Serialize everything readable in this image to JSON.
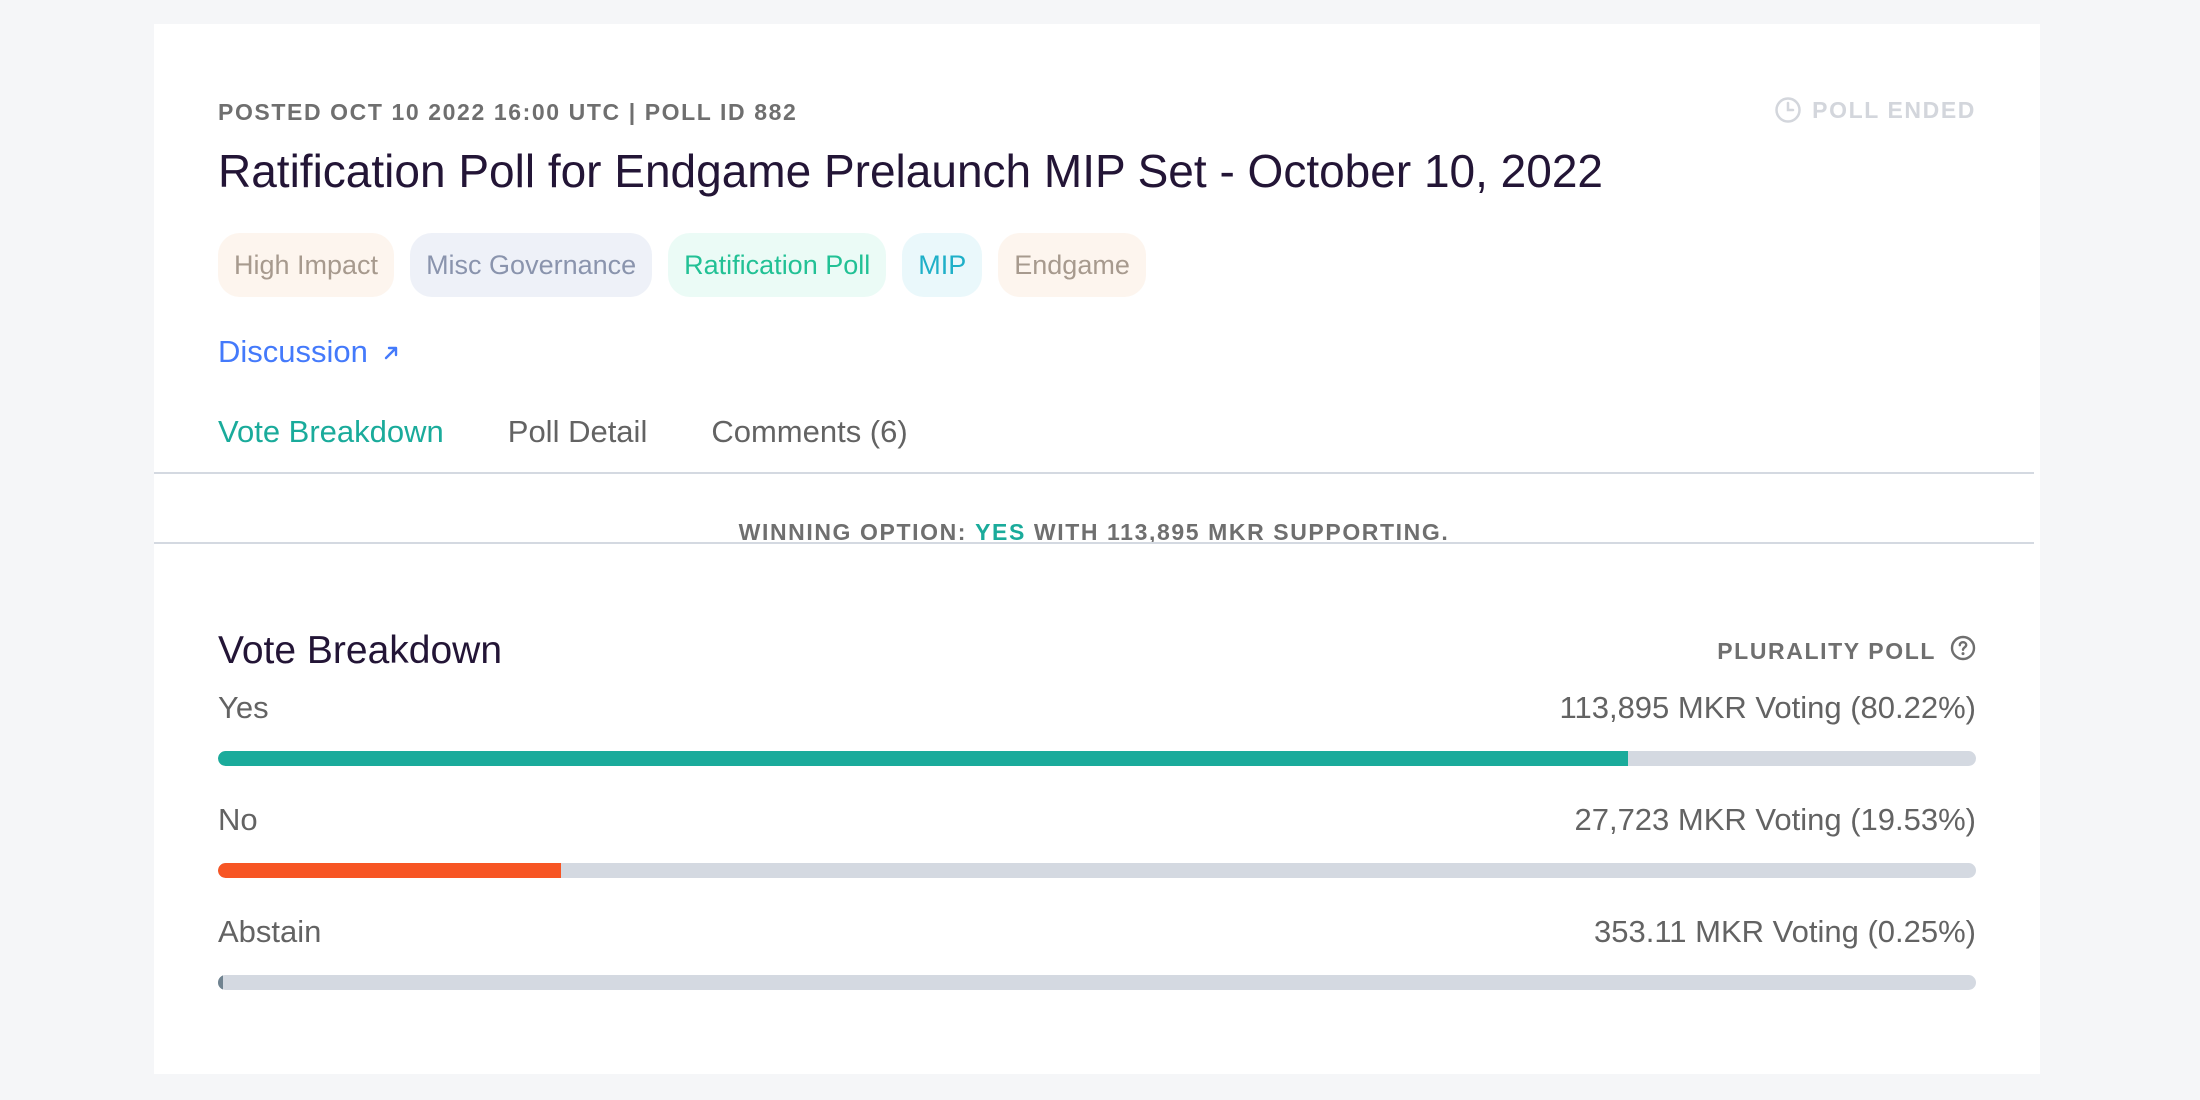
{
  "poll": {
    "meta": "POSTED OCT 10 2022 16:00 UTC | POLL ID 882",
    "status": "POLL ENDED",
    "title": "Ratification Poll for Endgame Prelaunch MIP Set - October 10, 2022",
    "tags": [
      {
        "label": "High Impact",
        "bg": "#fdf5ee",
        "color": "#a79a8e"
      },
      {
        "label": "Misc Governance",
        "bg": "#eef1f8",
        "color": "#8a94ad"
      },
      {
        "label": "Ratification Poll",
        "bg": "#ebfbf6",
        "color": "#22c195"
      },
      {
        "label": "MIP",
        "bg": "#eaf8fb",
        "color": "#1fb0c8"
      },
      {
        "label": "Endgame",
        "bg": "#fdf5ee",
        "color": "#a79a8e"
      }
    ],
    "discussion_label": "Discussion"
  },
  "tabs": [
    {
      "label": "Vote Breakdown",
      "active": true
    },
    {
      "label": "Poll Detail",
      "active": false
    },
    {
      "label": "Comments (6)",
      "active": false
    }
  ],
  "banner": {
    "prefix": "WINNING OPTION:",
    "winner": "YES",
    "suffix": "WITH 113,895 MKR SUPPORTING."
  },
  "breakdown": {
    "title": "Vote Breakdown",
    "poll_type": "PLURALITY POLL",
    "options": [
      {
        "label": "Yes",
        "value_text": "113,895 MKR Voting (80.22%)",
        "percent": 80.22,
        "color": "#1aab9b"
      },
      {
        "label": "No",
        "value_text": "27,723 MKR Voting (19.53%)",
        "percent": 19.53,
        "color": "#f75524"
      },
      {
        "label": "Abstain",
        "value_text": "353.11 MKR Voting (0.25%)",
        "percent": 0.25,
        "color": "#708390"
      }
    ]
  },
  "icons": {
    "status": "clock-icon",
    "discussion": "arrow-up-right-icon",
    "poll_type": "question-circle-icon"
  },
  "colors": {
    "accent": "#1aab9b",
    "link": "#447afb",
    "bar_track": "#d4d9e1"
  }
}
